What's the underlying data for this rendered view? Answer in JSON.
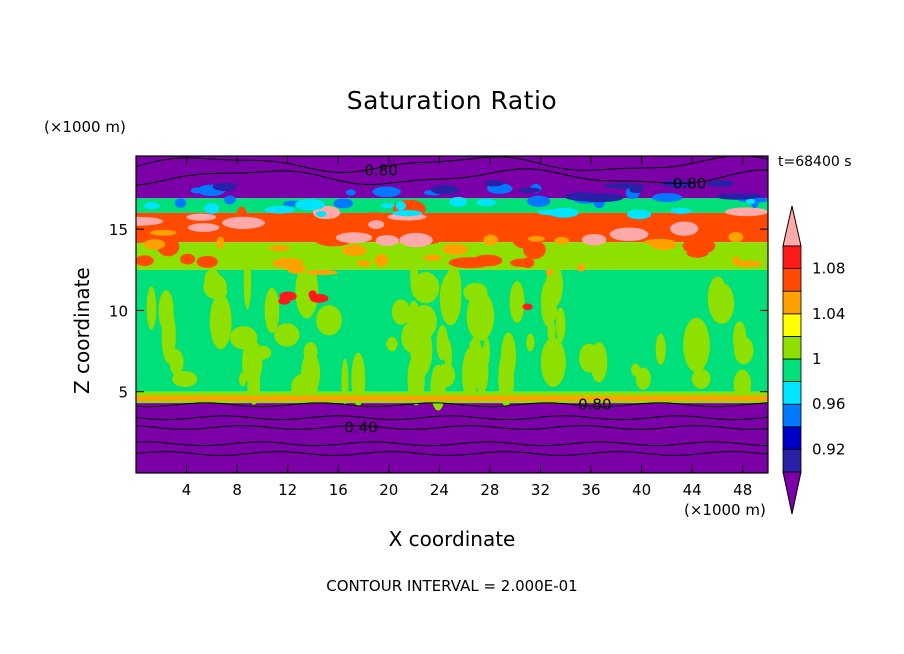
{
  "chart_data": {
    "type": "heatmap",
    "title": "Saturation Ratio",
    "xlabel": "X coordinate",
    "ylabel": "Z coordinate",
    "x_unit": "(×1000 m)",
    "y_unit": "(×1000 m)",
    "time_label": "t=68400 s",
    "footer": "CONTOUR INTERVAL = 2.000E-01",
    "xlim": [
      0,
      50
    ],
    "ylim": [
      0,
      19.5
    ],
    "x_ticks": [
      4,
      8,
      12,
      16,
      20,
      24,
      28,
      32,
      36,
      40,
      44,
      48
    ],
    "y_ticks": [
      5,
      10,
      15
    ],
    "colorbar": {
      "levels": [
        0.92,
        0.94,
        0.96,
        0.98,
        1,
        1.02,
        1.04,
        1.06,
        1.08,
        1.1
      ],
      "labels": [
        "0.92",
        "0.96",
        "1",
        "1.04",
        "1.08"
      ],
      "colors": [
        "#7b00a8",
        "#2a20a8",
        "#0000c8",
        "#0078ff",
        "#00e5ff",
        "#00e07a",
        "#8ee000",
        "#ffff00",
        "#ffa200",
        "#ff4a00",
        "#ff1a1a",
        "#ffaaaa"
      ]
    },
    "contour_labels": [
      {
        "text": "0.80",
        "x": 19.4,
        "y": 18.6
      },
      {
        "text": "0.80",
        "x": 43.8,
        "y": 17.8
      },
      {
        "text": "0.80",
        "x": 36.3,
        "y": 4.2
      },
      {
        "text": "0.40",
        "x": 17.8,
        "y": 2.8
      }
    ],
    "bands": [
      {
        "z": [
          18.3,
          19.5
        ],
        "color": "#7b00a8"
      },
      {
        "z": [
          16.9,
          18.3
        ],
        "color": "#7b00a8"
      },
      {
        "z": [
          16.0,
          16.9
        ],
        "color": "#00e07a"
      },
      {
        "z": [
          14.2,
          16.0
        ],
        "color": "#ff4a00"
      },
      {
        "z": [
          12.5,
          14.2
        ],
        "color": "#8ee000"
      },
      {
        "z": [
          5.0,
          12.5
        ],
        "color": "#00e07a"
      },
      {
        "z": [
          4.3,
          5.0
        ],
        "color": "#8ee000"
      },
      {
        "z": [
          0,
          4.3
        ],
        "color": "#7b00a8"
      }
    ]
  }
}
